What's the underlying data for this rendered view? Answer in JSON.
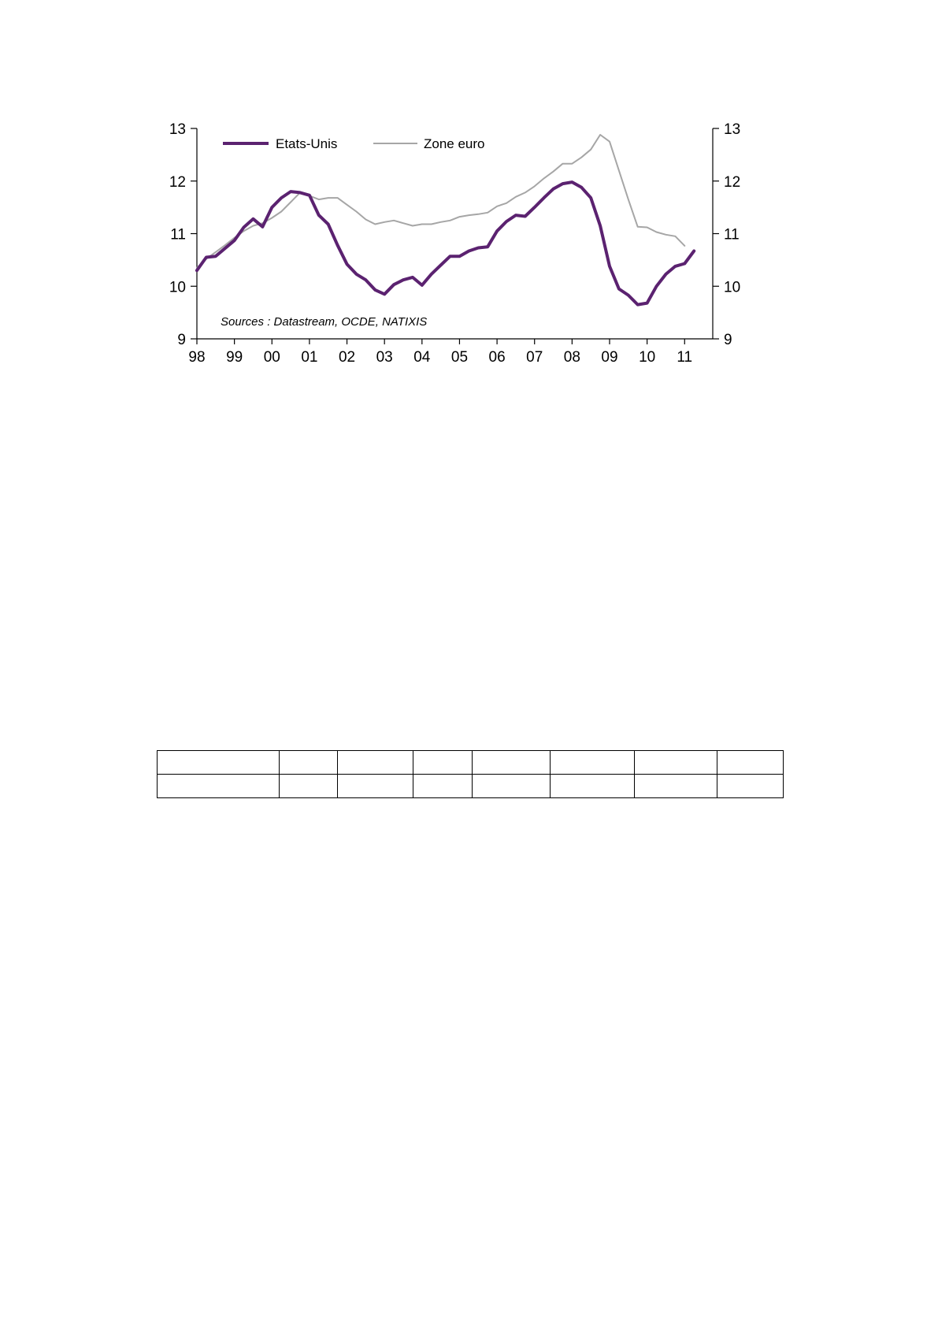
{
  "chart_data": {
    "type": "line",
    "title": "",
    "xlabel": "",
    "ylabel": "",
    "source": "Sources : Datastream, OCDE, NATIXIS",
    "x_tick_labels": [
      "98",
      "99",
      "00",
      "01",
      "02",
      "03",
      "04",
      "05",
      "06",
      "07",
      "08",
      "09",
      "10",
      "11"
    ],
    "x_range": [
      1998,
      2011.75
    ],
    "ylim": [
      9,
      13
    ],
    "y_ticks_left": [
      13,
      12,
      11,
      10,
      9
    ],
    "y_ticks_right": [
      13,
      12,
      11,
      10,
      9
    ],
    "legend_position": "top-left",
    "grid": false,
    "series": [
      {
        "name": "Etats-Unis",
        "color": "#5b2270",
        "width": 4,
        "x": [
          1998.0,
          1998.25,
          1998.5,
          1998.75,
          1999.0,
          1999.25,
          1999.5,
          1999.75,
          2000.0,
          2000.25,
          2000.5,
          2000.75,
          2001.0,
          2001.25,
          2001.5,
          2001.75,
          2002.0,
          2002.25,
          2002.5,
          2002.75,
          2003.0,
          2003.25,
          2003.5,
          2003.75,
          2004.0,
          2004.25,
          2004.5,
          2004.75,
          2005.0,
          2005.25,
          2005.5,
          2005.75,
          2006.0,
          2006.25,
          2006.5,
          2006.75,
          2007.0,
          2007.25,
          2007.5,
          2007.75,
          2008.0,
          2008.25,
          2008.5,
          2008.75,
          2009.0,
          2009.25,
          2009.5,
          2009.75,
          2010.0,
          2010.25,
          2010.5,
          2010.75,
          2011.0,
          2011.25
        ],
        "y": [
          10.3,
          10.55,
          10.57,
          10.72,
          10.87,
          11.12,
          11.28,
          11.13,
          11.5,
          11.68,
          11.8,
          11.78,
          11.73,
          11.35,
          11.18,
          10.78,
          10.42,
          10.23,
          10.12,
          9.93,
          9.85,
          10.03,
          10.12,
          10.17,
          10.02,
          10.23,
          10.4,
          10.57,
          10.57,
          10.67,
          10.73,
          10.75,
          11.05,
          11.23,
          11.35,
          11.33,
          11.5,
          11.68,
          11.85,
          11.95,
          11.98,
          11.88,
          11.68,
          11.15,
          10.38,
          9.95,
          9.83,
          9.65,
          9.68,
          10.0,
          10.23,
          10.38,
          10.43,
          10.67
        ]
      },
      {
        "name": "Zone euro",
        "color": "#a6a6a6",
        "width": 2,
        "x": [
          1998.0,
          1998.25,
          1998.5,
          1998.75,
          1999.0,
          1999.25,
          1999.5,
          1999.75,
          2000.0,
          2000.25,
          2000.5,
          2000.75,
          2001.0,
          2001.25,
          2001.5,
          2001.75,
          2002.0,
          2002.25,
          2002.5,
          2002.75,
          2003.0,
          2003.25,
          2003.5,
          2003.75,
          2004.0,
          2004.25,
          2004.5,
          2004.75,
          2005.0,
          2005.25,
          2005.5,
          2005.75,
          2006.0,
          2006.25,
          2006.5,
          2006.75,
          2007.0,
          2007.25,
          2007.5,
          2007.75,
          2008.0,
          2008.25,
          2008.5,
          2008.75,
          2009.0,
          2009.25,
          2009.5,
          2009.75,
          2010.0,
          2010.25,
          2010.5,
          2010.75,
          2011.0
        ],
        "y": [
          10.35,
          10.52,
          10.65,
          10.78,
          10.92,
          11.05,
          11.15,
          11.2,
          11.3,
          11.42,
          11.6,
          11.78,
          11.72,
          11.65,
          11.68,
          11.68,
          11.55,
          11.42,
          11.27,
          11.18,
          11.22,
          11.25,
          11.2,
          11.15,
          11.18,
          11.18,
          11.22,
          11.25,
          11.32,
          11.35,
          11.37,
          11.4,
          11.52,
          11.58,
          11.7,
          11.78,
          11.9,
          12.05,
          12.18,
          12.33,
          12.33,
          12.45,
          12.6,
          12.88,
          12.75,
          12.2,
          11.65,
          11.13,
          11.12,
          11.03,
          10.98,
          10.95,
          10.77
        ]
      }
    ]
  }
}
